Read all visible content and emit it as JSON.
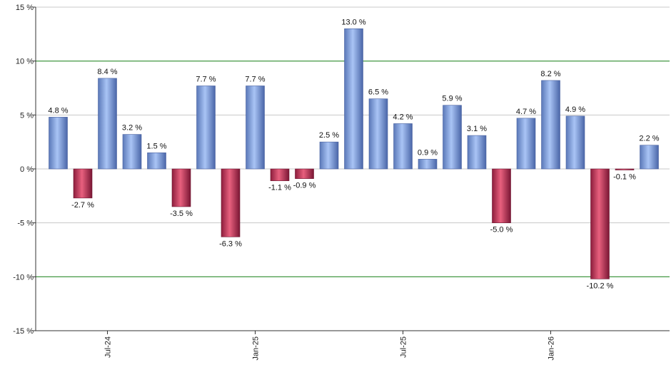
{
  "chart_data": {
    "type": "bar",
    "unit_suffix": " %",
    "ylim": [
      -15,
      15
    ],
    "y_ticks": [
      -15,
      -10,
      -5,
      0,
      5,
      10,
      15
    ],
    "y_tick_labels": [
      "-15 %",
      "-10 %",
      "-5 %",
      "0 %",
      "5 %",
      "10 %",
      "15 %"
    ],
    "x_ticks": [
      {
        "index": 2,
        "label": "Jul-24"
      },
      {
        "index": 8,
        "label": "Jan-25"
      },
      {
        "index": 14,
        "label": "Jul-25"
      },
      {
        "index": 20,
        "label": "Jan-26"
      }
    ],
    "values": [
      4.8,
      -2.7,
      8.4,
      3.2,
      1.5,
      -3.5,
      7.7,
      -6.3,
      7.7,
      -1.1,
      -0.9,
      2.5,
      13.0,
      6.5,
      4.2,
      0.9,
      5.9,
      3.1,
      -5.0,
      4.7,
      8.2,
      4.9,
      -10.2,
      -0.1,
      2.2
    ],
    "value_labels": [
      "4.8 %",
      "-2.7 %",
      "8.4 %",
      "3.2 %",
      "1.5 %",
      "-3.5 %",
      "7.7 %",
      "-6.3 %",
      "7.7 %",
      "-1.1 %",
      "-0.9 %",
      "2.5 %",
      "13.0 %",
      "6.5 %",
      "4.2 %",
      "0.9 %",
      "5.9 %",
      "3.1 %",
      "-5.0 %",
      "4.7 %",
      "8.2 %",
      "4.9 %",
      "-10.2 %",
      "-0.1 %",
      "2.2 %"
    ],
    "reference_lines": [
      10,
      -10
    ],
    "grid": true,
    "legend": "none",
    "colors": {
      "positive": "#7f9fe0",
      "negative": "#c8345a",
      "gridline": "#c8c8c8",
      "reference_line": "#2e8b2e",
      "axis": "#333333"
    }
  }
}
